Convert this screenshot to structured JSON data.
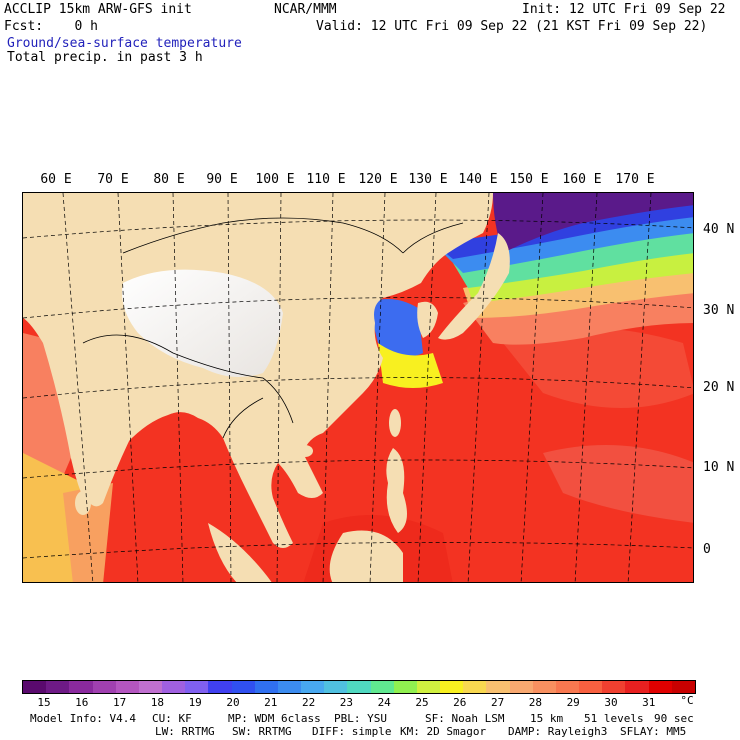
{
  "header": {
    "line1_left": "ACCLIP 15km ARW-GFS init",
    "line1_center": "NCAR/MMM",
    "line1_right": "Init: 12 UTC Fri 09 Sep 22",
    "line2_left": "Fcst:    0 h",
    "line2_right": "Valid: 12 UTC Fri 09 Sep 22 (21 KST Fri 09 Sep 22)",
    "field1": "Ground/sea-surface temperature",
    "field2": "Total precip. in past 3 h"
  },
  "lon_labels": [
    "60 E",
    "70 E",
    "80 E",
    "90 E",
    "100 E",
    "110 E",
    "120 E",
    "130 E",
    "140 E",
    "150 E",
    "160 E",
    "170 E"
  ],
  "lat_labels": [
    "40 N",
    "30 N",
    "20 N",
    "10 N",
    "0"
  ],
  "colorbar": {
    "colors": [
      "#5a0a6e",
      "#6e1a86",
      "#8a2a9e",
      "#a040b0",
      "#b456c0",
      "#c070d0",
      "#a060e0",
      "#8060f0",
      "#4040f0",
      "#3050f0",
      "#3070f0",
      "#3c8cf0",
      "#48a8f0",
      "#50c0e0",
      "#50d8c0",
      "#60e890",
      "#90f050",
      "#d0f040",
      "#f8f020",
      "#f8d850",
      "#f8c070",
      "#f8a870",
      "#f89060",
      "#f87850",
      "#f86040",
      "#f04030",
      "#e82020",
      "#e00000",
      "#c80000"
    ],
    "ticks": [
      "15",
      "16",
      "17",
      "18",
      "19",
      "20",
      "21",
      "22",
      "23",
      "24",
      "25",
      "26",
      "27",
      "28",
      "29",
      "30",
      "31"
    ],
    "unit": "°C"
  },
  "model_info": {
    "line1": [
      "Model Info: V4.4",
      "CU: KF",
      "MP: WDM 6class",
      "PBL: YSU",
      "SF: Noah LSM",
      "15 km",
      "51 levels",
      "90 sec"
    ],
    "line2": [
      "LW: RRTMG",
      "SW: RRTMG",
      "DIFF: simple",
      "KM: 2D Smagor",
      "DAMP: Rayleigh3",
      "SFLAY: MM5"
    ]
  }
}
